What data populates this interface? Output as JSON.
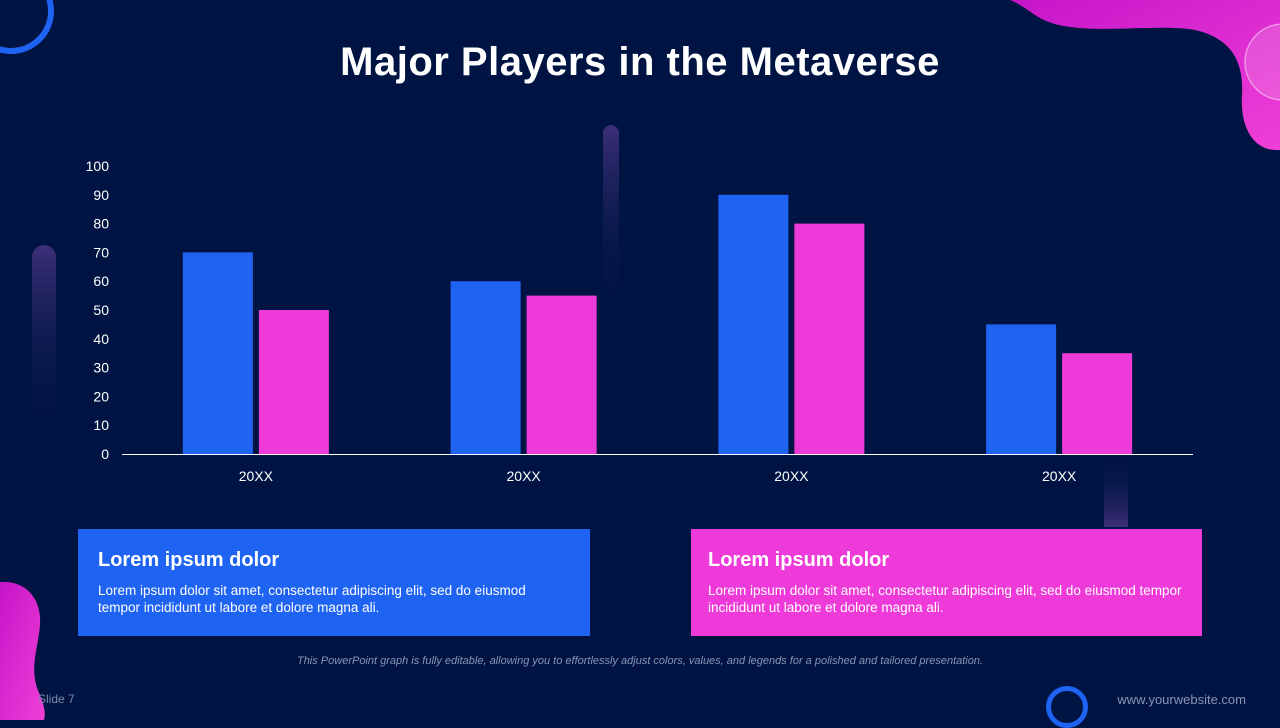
{
  "slide": {
    "title": "Major Players in the Metaverse",
    "footnote": "This PowerPoint graph is fully editable, allowing you to effortlessly adjust colors, values, and legends for a polished and tailored presentation.",
    "slide_number": "Slide 7",
    "website": "www.yourwebsite.com"
  },
  "chart_data": {
    "type": "bar",
    "title": "",
    "xlabel": "",
    "ylabel": "",
    "categories": [
      "20XX",
      "20XX",
      "20XX",
      "20XX"
    ],
    "series": [
      {
        "values": [
          70,
          60,
          90,
          45
        ],
        "color": "#1E63F2"
      },
      {
        "values": [
          50,
          55,
          80,
          35
        ],
        "color": "#EE3AD9"
      }
    ],
    "yticks": [
      0,
      10,
      20,
      30,
      40,
      50,
      60,
      70,
      80,
      90,
      100
    ],
    "ylim": [
      0,
      100
    ],
    "grid": false,
    "legend": "none"
  },
  "boxes": [
    {
      "heading": "Lorem ipsum dolor",
      "text": "Lorem ipsum dolor sit amet, consectetur adipiscing elit, sed do eiusmod tempor incididunt ut labore et dolore magna ali.",
      "color": "#1E63F2"
    },
    {
      "heading": "Lorem ipsum dolor",
      "text": "Lorem ipsum dolor sit amet, consectetur adipiscing elit, sed do eiusmod tempor incididunt ut labore et dolore magna ali.",
      "color": "#EE3AD9"
    }
  ]
}
